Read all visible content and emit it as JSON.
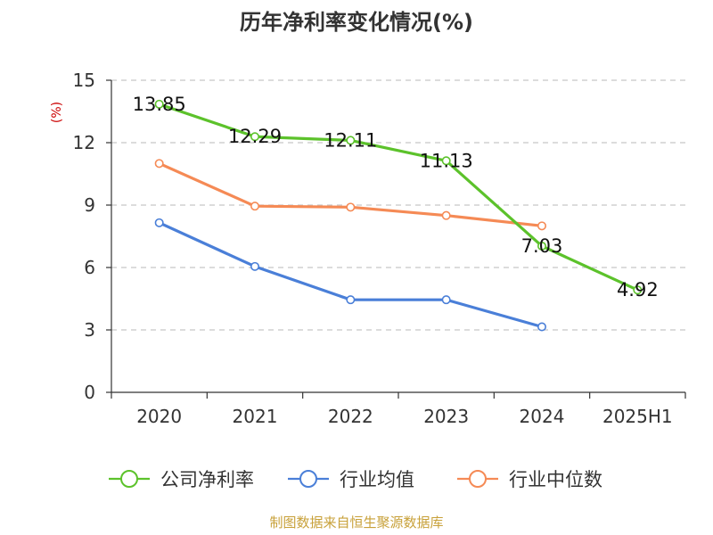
{
  "chart_data": {
    "type": "line",
    "title": "历年净利率变化情况(%)",
    "ylabel": "(%)",
    "xlabel": "",
    "categories": [
      "2020",
      "2021",
      "2022",
      "2023",
      "2024",
      "2025H1"
    ],
    "ylim": [
      0,
      15
    ],
    "yticks": [
      0,
      3,
      6,
      9,
      12,
      15
    ],
    "grid": "horizontal dashed",
    "legend_position": "bottom",
    "series": [
      {
        "name": "公司净利率",
        "color": "#5cc22b",
        "values": [
          13.85,
          12.29,
          12.11,
          11.13,
          7.03,
          4.92
        ],
        "labels": [
          "13.85",
          "12.29",
          "12.11",
          "11.13",
          "7.03",
          "4.92"
        ]
      },
      {
        "name": "行业均值",
        "color": "#4a7fd8",
        "values": [
          8.15,
          6.05,
          4.45,
          4.45,
          3.15,
          null
        ],
        "labels": []
      },
      {
        "name": "行业中位数",
        "color": "#f58a55",
        "values": [
          11.0,
          8.95,
          8.9,
          8.5,
          8.0,
          null
        ],
        "labels": []
      }
    ],
    "source": "制图数据来自恒生聚源数据库"
  }
}
